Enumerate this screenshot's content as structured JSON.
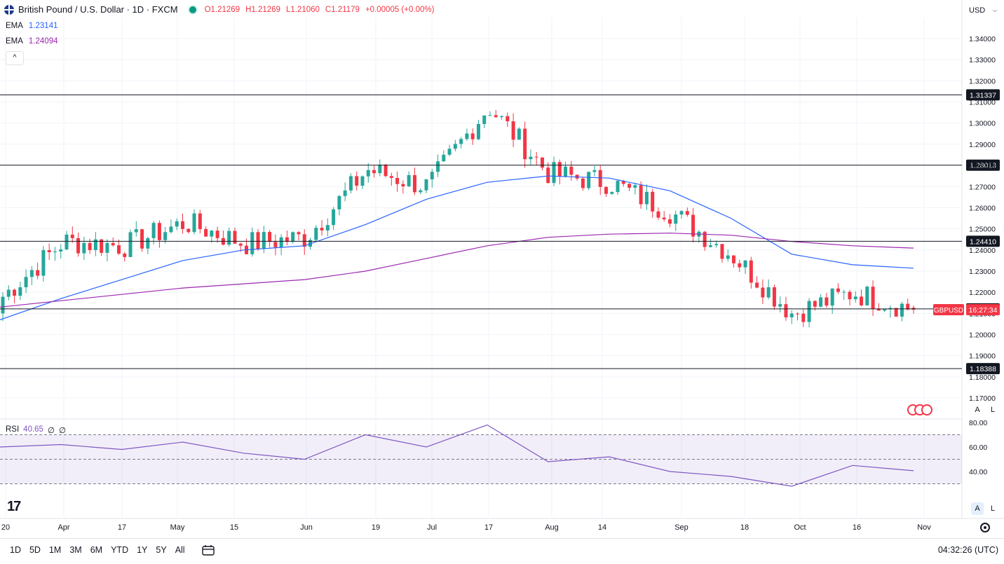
{
  "header": {
    "symbol_title": "British Pound / U.S. Dollar · 1D · FXCM",
    "open": "O1.21269",
    "high": "H1.21269",
    "low": "L1.21060",
    "close": "C1.21179",
    "change": "+0.00005 (+0.00%)"
  },
  "ema1": {
    "label": "EMA",
    "value": "1.23141",
    "color": "#2962ff"
  },
  "ema2": {
    "label": "EMA",
    "value": "1.24094",
    "color": "#9c27b0"
  },
  "rsi": {
    "label": "RSI",
    "value": "40.65",
    "extra1": "∅",
    "extra2": "∅",
    "color": "#7e57c2"
  },
  "currency_select": {
    "value": "USD"
  },
  "price_axis": {
    "ticks": [
      "1.34000",
      "1.33000",
      "1.32000",
      "1.31000",
      "1.30000",
      "1.29000",
      "1.28000",
      "1.27000",
      "1.26000",
      "1.25000",
      "1.24000",
      "1.23000",
      "1.22000",
      "1.21000",
      "1.20000",
      "1.19000",
      "1.18000",
      "1.17000"
    ],
    "level_labels": [
      "1.31337",
      "1.28013",
      "1.24410",
      "1.21216",
      "1.18388"
    ],
    "symbol_tag": "GBPUSD",
    "countdown": "16:27:34"
  },
  "rsi_axis": {
    "ticks": [
      "80.00",
      "60.00",
      "40.00"
    ]
  },
  "time_axis": {
    "labels": [
      "20",
      "Apr",
      "17",
      "May",
      "15",
      "Jun",
      "19",
      "Jul",
      "17",
      "Aug",
      "14",
      "Sep",
      "18",
      "Oct",
      "16",
      "Nov"
    ]
  },
  "scale_buttons": {
    "auto": "A",
    "log": "L"
  },
  "periods": [
    "1D",
    "5D",
    "1M",
    "3M",
    "6M",
    "YTD",
    "1Y",
    "5Y",
    "All"
  ],
  "clock": "04:32:26 (UTC)",
  "icons": {
    "flag": "gbp-usd-flag-icon",
    "live": "market-open-dot-icon",
    "collapse": "chevron-up-icon",
    "calendar": "calendar-range-icon",
    "settings": "gear-icon",
    "news": "economic-events-icon",
    "logo": "tradingview-logo-icon"
  },
  "colors": {
    "up": "#26a69a",
    "down": "#f23645",
    "ema_fast": "#2962ff",
    "ema_slow": "#9c27b0",
    "rsi": "#7e57c2",
    "level_line": "#131722"
  },
  "chart_data": {
    "type": "candlestick",
    "title": "British Pound / U.S. Dollar · 1D · FXCM",
    "x": [
      "2023-03-20",
      "2023-04-03",
      "2023-04-17",
      "2023-05-01",
      "2023-05-15",
      "2023-06-01",
      "2023-06-19",
      "2023-07-03",
      "2023-07-17",
      "2023-08-01",
      "2023-08-14",
      "2023-09-01",
      "2023-09-18",
      "2023-10-02",
      "2023-10-16",
      "2023-11-01"
    ],
    "close": [
      1.218,
      1.244,
      1.242,
      1.253,
      1.243,
      1.246,
      1.278,
      1.27,
      1.308,
      1.276,
      1.272,
      1.258,
      1.238,
      1.21,
      1.22,
      1.2118
    ],
    "series": [
      {
        "name": "EMA",
        "last": 1.23141,
        "values": [
          1.207,
          1.217,
          1.226,
          1.235,
          1.24,
          1.242,
          1.252,
          1.264,
          1.272,
          1.275,
          1.274,
          1.268,
          1.255,
          1.238,
          1.233,
          1.2314
        ]
      },
      {
        "name": "EMA",
        "last": 1.24094,
        "values": [
          1.213,
          1.216,
          1.219,
          1.222,
          1.224,
          1.226,
          1.23,
          1.236,
          1.242,
          1.246,
          1.2475,
          1.248,
          1.247,
          1.244,
          1.242,
          1.2409
        ]
      },
      {
        "name": "RSI",
        "last": 40.65,
        "values": [
          60,
          62,
          58,
          64,
          55,
          50,
          70,
          60,
          78,
          48,
          52,
          40,
          36,
          28,
          45,
          40.65
        ]
      }
    ],
    "horizontal_levels": [
      1.31337,
      1.28013,
      1.2441,
      1.21216,
      1.18388
    ],
    "ylim": [
      1.165,
      1.345
    ],
    "rsi_ylim": [
      20,
      82
    ],
    "rsi_band": [
      30,
      70
    ]
  }
}
